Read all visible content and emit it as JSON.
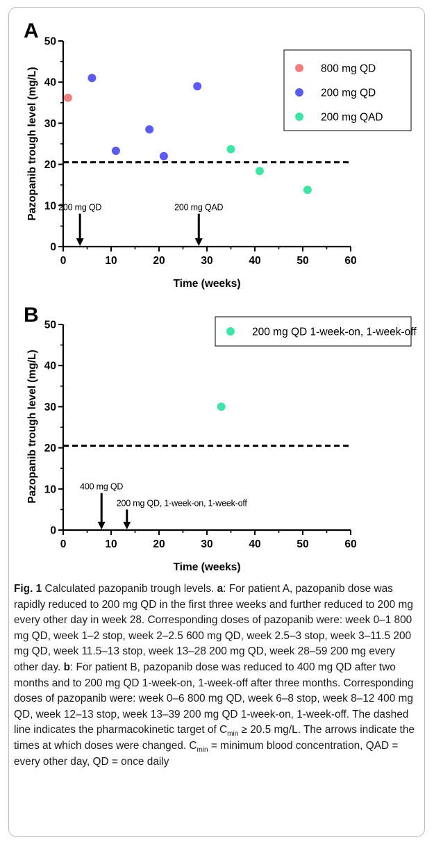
{
  "panels": [
    {
      "letter": "A",
      "ylabel": "Pazopanib trough level (mg/L)",
      "xlabel": "Time (weeks)"
    },
    {
      "letter": "B",
      "ylabel": "Pazopanib trough level (mg/L)",
      "xlabel": "Time (weeks)"
    }
  ],
  "caption": {
    "fig_label": "Fig. 1",
    "title": " Calculated pazopanib trough levels. ",
    "a_label": "a",
    "a_text": ": For patient A, pazopanib dose was rapidly reduced to 200 mg QD in the first three weeks and further reduced to 200 mg every other day in week 28. Corresponding doses of pazopanib were: week 0–1 800 mg QD, week 1–2 stop, week 2–2.5 600 mg QD, week 2.5–3 stop, week 3–11.5 200 mg QD, week 11.5–13 stop, week 13–28 200 mg QD, week 28–59 200 mg every other day. ",
    "b_label": "b",
    "b_text": ": For patient B, pazopanib dose was reduced to 400 mg QD after two months and to 200 mg QD 1-week-on, 1-week-off after three months. Corresponding doses of pazopanib were: week 0–6 800 mg QD, week 6–8 stop, week 8–12 400 mg QD, week 12–13 stop, week 13–39 200 mg QD 1-week-on, 1-week-off. The dashed line indicates the pharmacokinetic target of C",
    "cmin_sub_1": "min",
    "text_after_target": " ≥ 20.5 mg/L. The arrows indicate the times at which doses were changed. C",
    "cmin_sub_2": "min",
    "text_end": " = minimum blood concentration, QAD = every other day, QD = once daily"
  },
  "colors": {
    "800mg_qd": "#f07f7f",
    "200mg_qd": "#5b5bf0",
    "200mg_qad": "#3de6a6",
    "dashed_line": "#000000"
  },
  "chart_data": [
    {
      "type": "scatter",
      "panel": "A",
      "xlabel": "Time (weeks)",
      "ylabel": "Pazopanib trough level (mg/L)",
      "xlim": [
        0,
        60
      ],
      "ylim": [
        0,
        50
      ],
      "xticks": [
        "0",
        "10",
        "20",
        "30",
        "40",
        "50",
        "60"
      ],
      "yticks": [
        "0",
        "10",
        "20",
        "30",
        "40",
        "50"
      ],
      "legend_position": "top-right",
      "series": [
        {
          "name": "800 mg QD",
          "color": "#f07f7f",
          "points": [
            [
              1,
              36.2
            ]
          ]
        },
        {
          "name": "200 mg QD",
          "color": "#5b5bf0",
          "points": [
            [
              6,
              41.0
            ],
            [
              11,
              23.3
            ],
            [
              18,
              28.5
            ],
            [
              21,
              22.0
            ],
            [
              28,
              39.0
            ]
          ]
        },
        {
          "name": "200 mg QAD",
          "color": "#3de6a6",
          "points": [
            [
              35,
              23.7
            ],
            [
              41,
              18.4
            ],
            [
              51,
              13.8
            ]
          ]
        }
      ],
      "threshold_y": 20.5,
      "arrows": [
        {
          "x": 3.5,
          "from_y": 8,
          "label": "200 mg QD"
        },
        {
          "x": 28.3,
          "from_y": 8,
          "label": "200 mg QAD"
        }
      ]
    },
    {
      "type": "scatter",
      "panel": "B",
      "xlabel": "Time (weeks)",
      "ylabel": "Pazopanib trough level (mg/L)",
      "xlim": [
        0,
        60
      ],
      "ylim": [
        0,
        50
      ],
      "xticks": [
        "0",
        "10",
        "20",
        "30",
        "40",
        "50",
        "60"
      ],
      "yticks": [
        "0",
        "10",
        "20",
        "30",
        "40",
        "50"
      ],
      "legend_position": "top-right",
      "series": [
        {
          "name": "200 mg QD 1-week-on, 1-week-off",
          "color": "#3de6a6",
          "points": [
            [
              33,
              30.0
            ]
          ]
        }
      ],
      "threshold_y": 20.5,
      "arrows": [
        {
          "x": 8.0,
          "from_y": 9,
          "label": "400 mg QD"
        },
        {
          "x": 13.3,
          "from_y": 5,
          "label": "200 mg QD, 1-week-on, 1-week-off"
        }
      ]
    }
  ]
}
